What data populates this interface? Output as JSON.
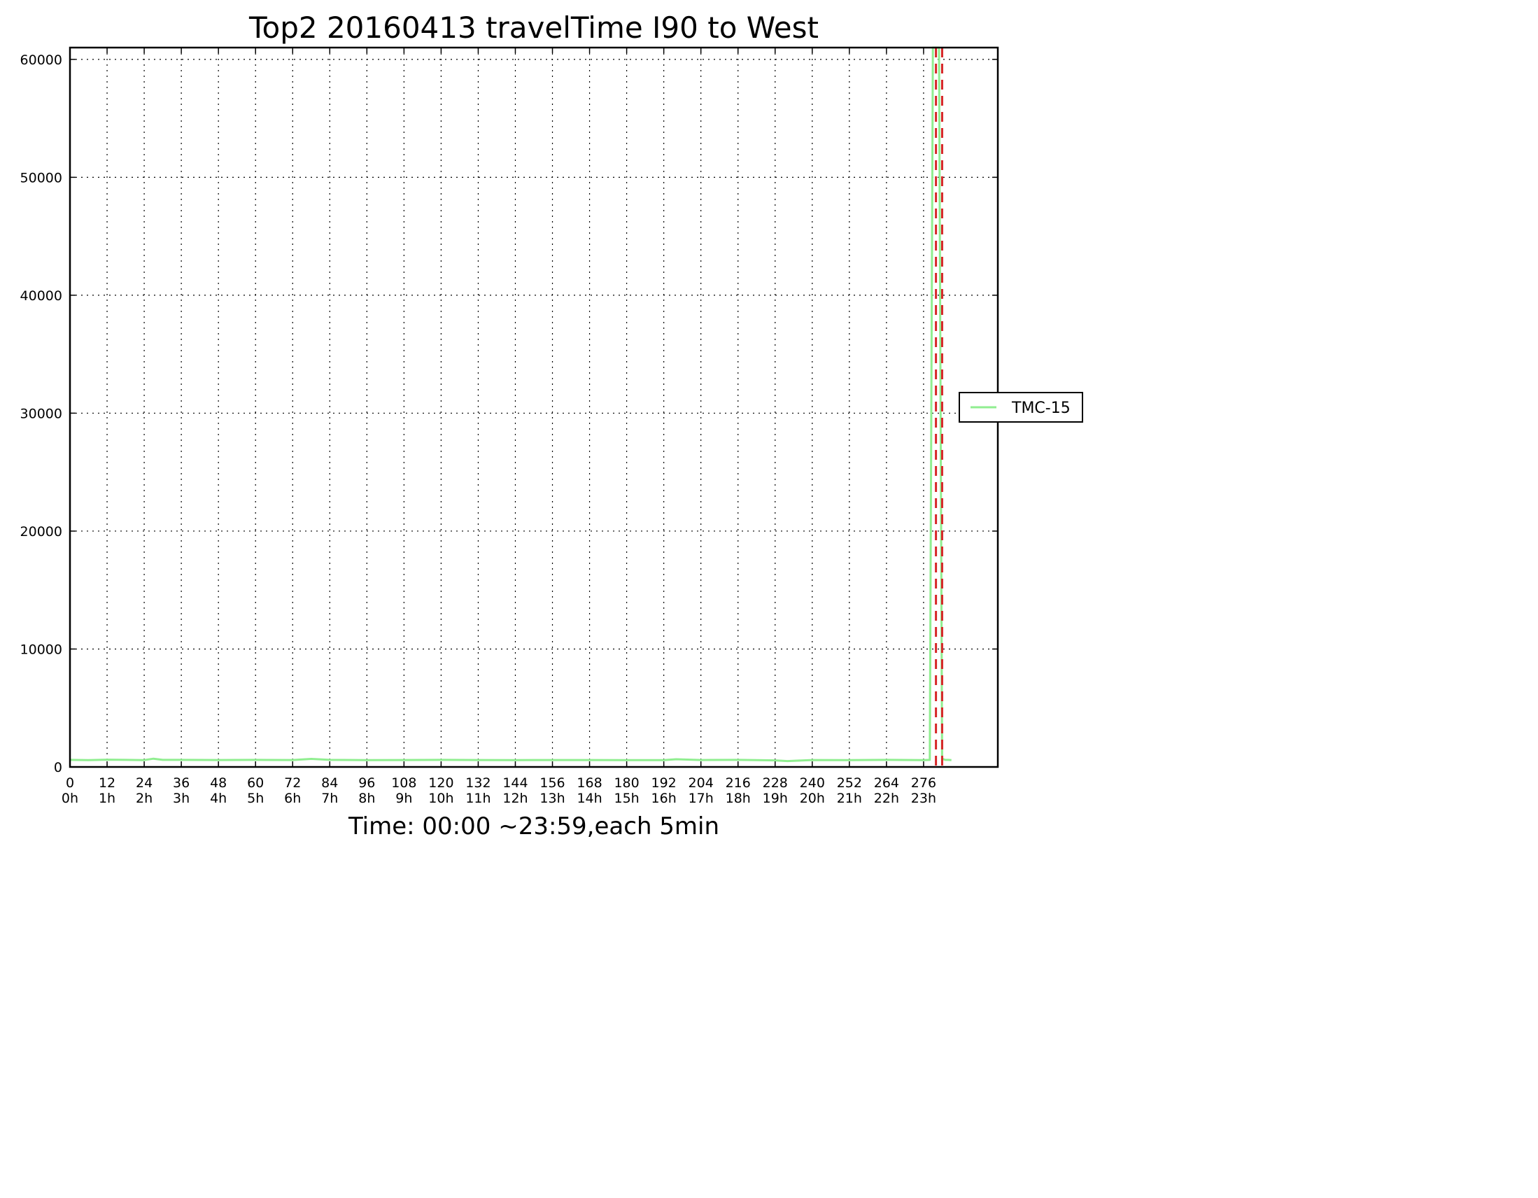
{
  "chart_data": {
    "type": "line",
    "title": "Top2 20160413 travelTime I90 to West",
    "xlabel": "Time: 00:00 ~23:59,each 5min",
    "ylabel": "",
    "xlim": [
      0,
      300
    ],
    "ylim": [
      0,
      61000
    ],
    "grid": true,
    "grid_style": "dotted",
    "x_ticks": [
      0,
      12,
      24,
      36,
      48,
      60,
      72,
      84,
      96,
      108,
      120,
      132,
      144,
      156,
      168,
      180,
      192,
      204,
      216,
      228,
      240,
      252,
      264,
      276
    ],
    "x_tick_labels": [
      "0",
      "12",
      "24",
      "36",
      "48",
      "60",
      "72",
      "84",
      "96",
      "108",
      "120",
      "132",
      "144",
      "156",
      "168",
      "180",
      "192",
      "204",
      "216",
      "228",
      "240",
      "252",
      "264",
      "276"
    ],
    "x_tick_sublabels": [
      "0h",
      "1h",
      "2h",
      "3h",
      "4h",
      "5h",
      "6h",
      "7h",
      "8h",
      "9h",
      "10h",
      "11h",
      "12h",
      "13h",
      "14h",
      "15h",
      "16h",
      "17h",
      "18h",
      "19h",
      "20h",
      "21h",
      "22h",
      "23h"
    ],
    "y_ticks": [
      0,
      10000,
      20000,
      30000,
      40000,
      50000,
      60000
    ],
    "y_tick_labels": [
      "0",
      "10000",
      "20000",
      "30000",
      "40000",
      "50000",
      "60000"
    ],
    "legend": {
      "placement": "right",
      "entries": [
        "TMC-15"
      ]
    },
    "series": [
      {
        "name": "TMC-15",
        "color": "#90ee90",
        "x": [
          0,
          6,
          12,
          18,
          24,
          27,
          30,
          36,
          48,
          60,
          72,
          78,
          84,
          96,
          108,
          120,
          132,
          144,
          156,
          168,
          180,
          192,
          196,
          204,
          216,
          228,
          232,
          240,
          252,
          264,
          276,
          278,
          279,
          280,
          281,
          282,
          283,
          284,
          285
        ],
        "y": [
          600,
          580,
          620,
          600,
          580,
          700,
          600,
          600,
          590,
          600,
          590,
          680,
          600,
          580,
          590,
          600,
          590,
          580,
          590,
          590,
          580,
          580,
          650,
          590,
          600,
          560,
          500,
          590,
          580,
          600,
          580,
          600,
          61000,
          61000,
          61000,
          700,
          600,
          600,
          580
        ]
      }
    ],
    "reference_lines": {
      "color": "#d62728",
      "style": "dashed",
      "x": [
        280,
        282
      ]
    }
  }
}
